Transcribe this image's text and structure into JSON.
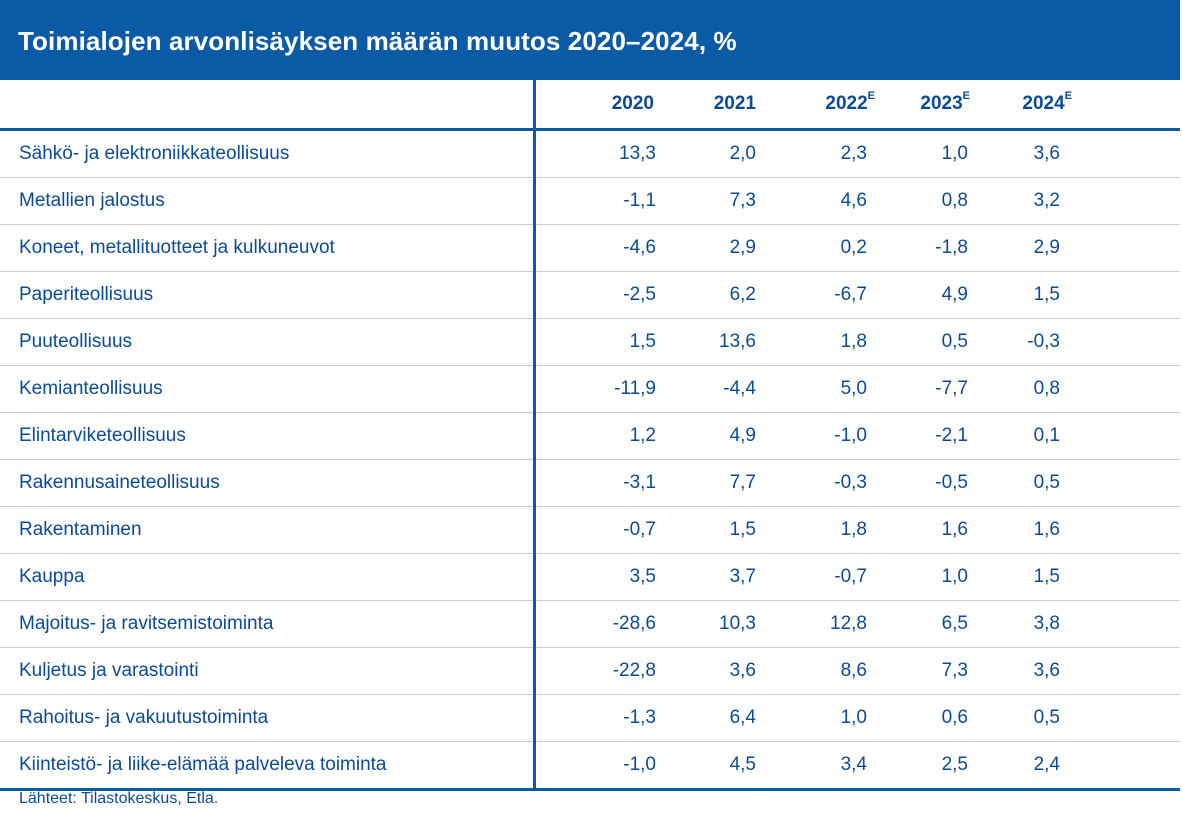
{
  "title": "Toimialojen arvonlisäyksen määrän muutos 2020–2024, %",
  "columns": [
    {
      "year": "2020",
      "sup": ""
    },
    {
      "year": "2021",
      "sup": ""
    },
    {
      "year": "2022",
      "sup": "E"
    },
    {
      "year": "2023",
      "sup": "E"
    },
    {
      "year": "2024",
      "sup": "E"
    }
  ],
  "rows": [
    {
      "label": "Sähkö- ja elektroniikkateollisuus",
      "values": [
        "13,3",
        "2,0",
        "2,3",
        "1,0",
        "3,6"
      ]
    },
    {
      "label": "Metallien jalostus",
      "values": [
        "-1,1",
        "7,3",
        "4,6",
        "0,8",
        "3,2"
      ]
    },
    {
      "label": "Koneet, metallituotteet ja kulkuneuvot",
      "values": [
        "-4,6",
        "2,9",
        "0,2",
        "-1,8",
        "2,9"
      ]
    },
    {
      "label": "Paperiteollisuus",
      "values": [
        "-2,5",
        "6,2",
        "-6,7",
        "4,9",
        "1,5"
      ]
    },
    {
      "label": "Puuteollisuus",
      "values": [
        "1,5",
        "13,6",
        "1,8",
        "0,5",
        "-0,3"
      ]
    },
    {
      "label": "Kemianteollisuus",
      "values": [
        "-11,9",
        "-4,4",
        "5,0",
        "-7,7",
        "0,8"
      ]
    },
    {
      "label": "Elintarviketeollisuus",
      "values": [
        "1,2",
        "4,9",
        "-1,0",
        "-2,1",
        "0,1"
      ]
    },
    {
      "label": "Rakennusaineteollisuus",
      "values": [
        "-3,1",
        "7,7",
        "-0,3",
        "-0,5",
        "0,5"
      ]
    },
    {
      "label": "Rakentaminen",
      "values": [
        "-0,7",
        "1,5",
        "1,8",
        "1,6",
        "1,6"
      ]
    },
    {
      "label": "Kauppa",
      "values": [
        "3,5",
        "3,7",
        "-0,7",
        "1,0",
        "1,5"
      ]
    },
    {
      "label": "Majoitus- ja ravitsemistoiminta",
      "values": [
        "-28,6",
        "10,3",
        "12,8",
        "6,5",
        "3,8"
      ]
    },
    {
      "label": "Kuljetus ja varastointi",
      "values": [
        "-22,8",
        "3,6",
        "8,6",
        "7,3",
        "3,6"
      ]
    },
    {
      "label": "Rahoitus- ja vakuutustoiminta",
      "values": [
        "-1,3",
        "6,4",
        "1,0",
        "0,6",
        "0,5"
      ]
    },
    {
      "label": "Kiinteistö- ja liike-elämää palveleva toiminta",
      "values": [
        "-1,0",
        "4,5",
        "3,4",
        "2,5",
        "2,4"
      ]
    }
  ],
  "source": "Lähteet: Tilastokeskus, Etla.",
  "colors": {
    "header_blue": "#0a5aa6",
    "text_blue": "#0b4a97",
    "row_divider": "#c9c9c9"
  }
}
